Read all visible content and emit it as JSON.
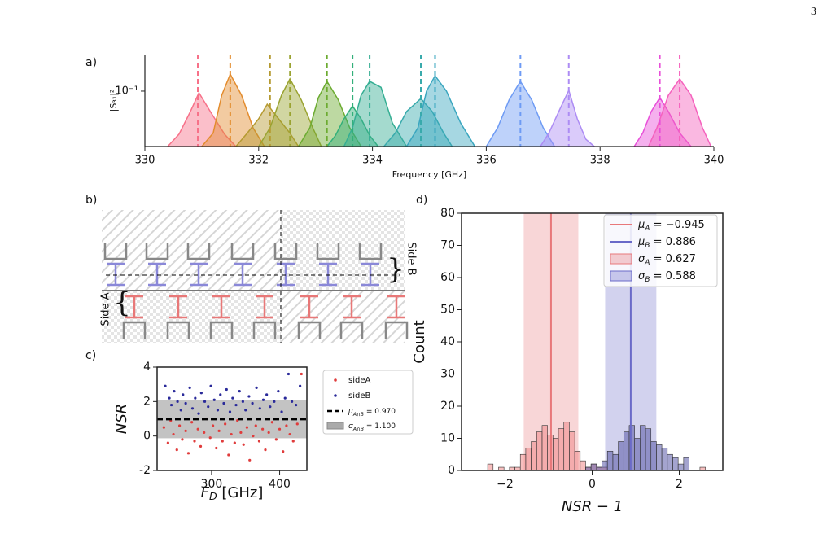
{
  "page_number": "3",
  "diagram": {
    "panel_label": "b)",
    "side_a": "Side A",
    "side_b": "Side B"
  },
  "chart_data": [
    {
      "type": "area",
      "panel_label": "a)",
      "xlabel": "Frequency [GHz]",
      "ylabel": "|S₃₁|²",
      "log_scale": true,
      "xlim": [
        330,
        340
      ],
      "xticks": [
        330,
        332,
        334,
        336,
        338,
        340
      ],
      "ylim": [
        0.025,
        0.25
      ],
      "yticks": [
        {
          "value": 0.1,
          "label": "10⁻¹"
        }
      ],
      "series": [
        {
          "color": "#f77189",
          "center": 330.93,
          "x": [
            330.4,
            330.6,
            330.8,
            330.95,
            331.15,
            331.4,
            331.6
          ],
          "values": [
            0.025,
            0.034,
            0.06,
            0.096,
            0.06,
            0.034,
            0.025
          ]
        },
        {
          "color": "#e38c2e",
          "center": 331.5,
          "x": [
            331.0,
            331.2,
            331.35,
            331.5,
            331.7,
            331.9,
            332.1
          ],
          "values": [
            0.025,
            0.035,
            0.09,
            0.153,
            0.09,
            0.04,
            0.025
          ]
        },
        {
          "color": "#b59a31",
          "center": 332.2,
          "x": [
            331.6,
            331.8,
            332.0,
            332.15,
            332.35,
            332.55,
            332.7
          ],
          "values": [
            0.025,
            0.035,
            0.05,
            0.072,
            0.05,
            0.035,
            0.025
          ]
        },
        {
          "color": "#9aa331",
          "center": 332.55,
          "x": [
            332.0,
            332.2,
            332.4,
            332.55,
            332.75,
            332.95,
            333.1
          ],
          "values": [
            0.025,
            0.04,
            0.09,
            0.136,
            0.08,
            0.04,
            0.025
          ]
        },
        {
          "color": "#6cab31",
          "center": 333.2,
          "x": [
            332.7,
            332.9,
            333.05,
            333.2,
            333.4,
            333.6,
            333.8
          ],
          "values": [
            0.025,
            0.04,
            0.085,
            0.128,
            0.08,
            0.04,
            0.025
          ]
        },
        {
          "color": "#33b07a",
          "center": 333.65,
          "x": [
            333.2,
            333.35,
            333.5,
            333.65,
            333.8,
            333.95,
            334.1
          ],
          "values": [
            0.025,
            0.033,
            0.05,
            0.069,
            0.05,
            0.033,
            0.025
          ]
        },
        {
          "color": "#35ae93",
          "center": 333.95,
          "x": [
            333.5,
            333.65,
            333.8,
            333.95,
            334.15,
            334.35,
            334.6
          ],
          "values": [
            0.025,
            0.04,
            0.09,
            0.128,
            0.11,
            0.045,
            0.025
          ]
        },
        {
          "color": "#38aaac",
          "center": 334.85,
          "x": [
            334.2,
            334.4,
            334.6,
            334.85,
            335.05,
            335.25,
            335.4
          ],
          "values": [
            0.025,
            0.035,
            0.06,
            0.083,
            0.06,
            0.035,
            0.025
          ]
        },
        {
          "color": "#3aa6bf",
          "center": 335.1,
          "x": [
            334.6,
            334.8,
            334.95,
            335.1,
            335.3,
            335.55,
            335.8
          ],
          "values": [
            0.025,
            0.04,
            0.1,
            0.147,
            0.1,
            0.045,
            0.025
          ]
        },
        {
          "color": "#6e9bf4",
          "center": 336.6,
          "x": [
            336.0,
            336.2,
            336.4,
            336.6,
            336.8,
            337.0,
            337.2
          ],
          "values": [
            0.025,
            0.04,
            0.08,
            0.128,
            0.08,
            0.04,
            0.025
          ]
        },
        {
          "color": "#ad8cf4",
          "center": 337.45,
          "x": [
            336.95,
            337.1,
            337.3,
            337.45,
            337.6,
            337.75,
            337.9
          ],
          "values": [
            0.025,
            0.035,
            0.065,
            0.102,
            0.05,
            0.03,
            0.025
          ]
        },
        {
          "color": "#e84fd9",
          "center": 339.05,
          "x": [
            338.6,
            338.75,
            338.9,
            339.05,
            339.2,
            339.4,
            339.6
          ],
          "values": [
            0.025,
            0.035,
            0.06,
            0.085,
            0.06,
            0.035,
            0.025
          ]
        },
        {
          "color": "#f561bd",
          "center": 339.4,
          "x": [
            338.85,
            339.0,
            339.2,
            339.4,
            339.6,
            339.8,
            339.95
          ],
          "values": [
            0.025,
            0.04,
            0.09,
            0.136,
            0.09,
            0.04,
            0.025
          ]
        }
      ]
    },
    {
      "type": "scatter",
      "panel_label": "c)",
      "xlabel": {
        "symbol": "F",
        "sub": "D",
        "text": " [GHz]"
      },
      "ylabel": "NSR",
      "xlim": [
        220,
        440
      ],
      "xticks": [
        300,
        400
      ],
      "ylim": [
        -2,
        4
      ],
      "yticks": [
        -2,
        0,
        2,
        4
      ],
      "mean": {
        "symbol": "μ",
        "sub": "A∩B",
        "label": " = 0.970",
        "value": 0.97
      },
      "std": {
        "symbol": "σ",
        "sub": "A∩B",
        "label": " = 1.100",
        "value": 1.1
      },
      "series": [
        {
          "name": "sideA",
          "color": "#e03c3c",
          "x": [
            230,
            236,
            240,
            244,
            249,
            253,
            257,
            262,
            266,
            271,
            275,
            280,
            284,
            289,
            293,
            298,
            302,
            307,
            311,
            316,
            320,
            325,
            329,
            334,
            338,
            343,
            347,
            352,
            356,
            361,
            365,
            370,
            375,
            379,
            384,
            389,
            395,
            400,
            405,
            410,
            415,
            420,
            426,
            432
          ],
          "values": [
            0.5,
            -0.4,
            0.9,
            0.1,
            -0.8,
            0.6,
            -0.2,
            0.3,
            -1.0,
            0.8,
            -0.3,
            0.4,
            -0.6,
            0.2,
            1.0,
            -0.1,
            0.6,
            -0.7,
            0.3,
            -0.3,
            0.7,
            -1.1,
            0.1,
            -0.4,
            0.9,
            0.2,
            -0.5,
            0.5,
            -1.4,
            0.0,
            0.6,
            -0.3,
            0.4,
            -0.8,
            0.2,
            0.8,
            -0.2,
            0.4,
            -0.9,
            0.6,
            0.1,
            -0.3,
            0.7,
            3.6
          ]
        },
        {
          "name": "sideB",
          "color": "#2a2a9a",
          "x": [
            232,
            238,
            241,
            245,
            250,
            255,
            258,
            262,
            268,
            272,
            276,
            281,
            285,
            290,
            295,
            299,
            304,
            309,
            313,
            318,
            322,
            327,
            331,
            336,
            341,
            346,
            350,
            355,
            360,
            366,
            371,
            376,
            381,
            386,
            392,
            398,
            403,
            408,
            413,
            418,
            424,
            430
          ],
          "values": [
            2.9,
            2.2,
            1.8,
            2.6,
            2.0,
            1.5,
            2.4,
            1.9,
            2.8,
            1.6,
            2.2,
            1.3,
            2.5,
            2.0,
            1.7,
            2.9,
            2.1,
            1.5,
            2.4,
            1.9,
            2.7,
            1.4,
            2.2,
            1.8,
            2.6,
            2.0,
            1.5,
            2.3,
            1.9,
            2.8,
            1.6,
            2.1,
            2.4,
            1.7,
            2.0,
            2.6,
            1.4,
            2.2,
            3.6,
            2.0,
            1.8,
            2.9
          ]
        }
      ]
    },
    {
      "type": "histogram",
      "panel_label": "d)",
      "xlabel": "NSR − 1",
      "ylabel": "Count",
      "xlim": [
        -3,
        3
      ],
      "xticks": [
        {
          "value": -2,
          "label": "−2"
        },
        0,
        2
      ],
      "ylim": [
        0,
        80
      ],
      "yticks": [
        0,
        10,
        20,
        30,
        40,
        50,
        60,
        70,
        80
      ],
      "bins": [
        -2.4,
        -2.275,
        -2.15,
        -2.025,
        -1.9,
        -1.775,
        -1.65,
        -1.525,
        -1.4,
        -1.275,
        -1.15,
        -1.025,
        -0.9,
        -0.775,
        -0.65,
        -0.525,
        -0.4,
        -0.275,
        -0.15,
        -0.025,
        0.1,
        0.225,
        0.35,
        0.475,
        0.6,
        0.725,
        0.85,
        0.975,
        1.1,
        1.225,
        1.35,
        1.475,
        1.6,
        1.725,
        1.85,
        1.975,
        2.1,
        2.225,
        2.35,
        2.475,
        2.6
      ],
      "groups": [
        {
          "color": "#e8787a",
          "bar_color": "#f08a8a",
          "mean": {
            "symbol": "μ",
            "sub": "A",
            "label": " = −0.945",
            "value": -0.945
          },
          "std": {
            "symbol": "σ",
            "sub": "A",
            "label": " = 0.627",
            "value": 0.627
          },
          "counts": [
            2,
            0,
            1,
            0,
            1,
            1,
            5,
            7,
            9,
            12,
            14,
            11,
            10,
            13,
            15,
            12,
            6,
            3,
            1,
            2,
            1,
            1,
            0,
            0,
            0,
            0,
            0,
            0,
            0,
            0,
            0,
            0,
            0,
            0,
            0,
            0,
            0,
            0,
            0,
            1
          ]
        },
        {
          "color": "#6a6ac8",
          "bar_color": "#5a5aa8",
          "mean": {
            "symbol": "μ",
            "sub": "B",
            "label": " = 0.886",
            "value": 0.886
          },
          "std": {
            "symbol": "σ",
            "sub": "B",
            "label": " = 0.588",
            "value": 0.588
          },
          "counts": [
            0,
            0,
            0,
            0,
            0,
            0,
            0,
            0,
            0,
            0,
            0,
            0,
            0,
            0,
            0,
            0,
            0,
            0,
            1,
            2,
            1,
            3,
            6,
            5,
            9,
            12,
            14,
            10,
            14,
            13,
            9,
            8,
            7,
            5,
            4,
            2,
            4,
            0,
            0,
            0
          ]
        }
      ]
    }
  ]
}
